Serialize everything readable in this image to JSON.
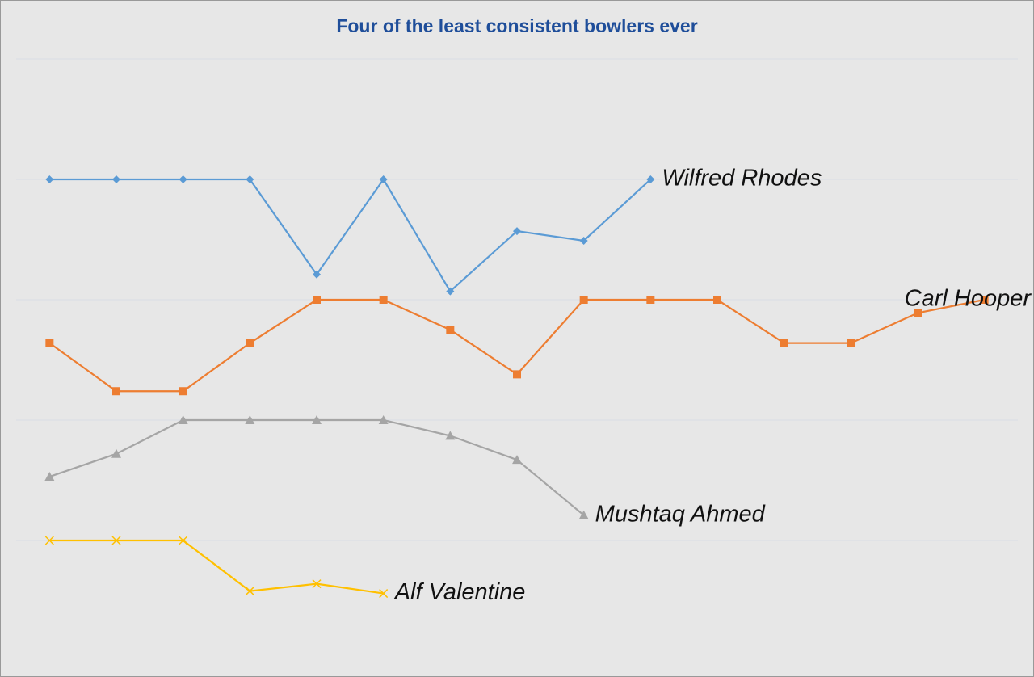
{
  "chart_data": {
    "type": "line",
    "title": "Four of the least consistent bowlers ever",
    "x": [
      1,
      2,
      3,
      4,
      5,
      6,
      7,
      8,
      9,
      10,
      11,
      12,
      13,
      14,
      15
    ],
    "xlim": [
      0.5,
      15.5
    ],
    "ylim": [
      0,
      5
    ],
    "grid_lines": [
      1,
      2,
      3,
      4,
      5
    ],
    "series": [
      {
        "name": "Wilfred Rhodes",
        "color": "#5b9bd5",
        "marker": "diamond",
        "values": [
          4,
          4,
          4,
          4,
          3.21,
          4,
          3.07,
          3.57,
          3.49,
          4,
          null,
          null,
          null,
          null,
          null
        ]
      },
      {
        "name": "Carl Hooper",
        "color": "#ed7d31",
        "marker": "square",
        "values": [
          2.64,
          2.24,
          2.24,
          2.64,
          3,
          3,
          2.75,
          2.38,
          3,
          3,
          3,
          2.64,
          2.64,
          2.89,
          3
        ]
      },
      {
        "name": "Mushtaq Ahmed",
        "color": "#a5a5a5",
        "marker": "triangle",
        "values": [
          1.53,
          1.72,
          2,
          2,
          2,
          2,
          1.87,
          1.67,
          1.21,
          null,
          null,
          null,
          null,
          null,
          null
        ]
      },
      {
        "name": "Alf Valentine",
        "color": "#ffc000",
        "marker": "x",
        "values": [
          1,
          1,
          1,
          0.58,
          0.64,
          0.56,
          null,
          null,
          null,
          null,
          null,
          null,
          null,
          null,
          null
        ]
      }
    ]
  }
}
